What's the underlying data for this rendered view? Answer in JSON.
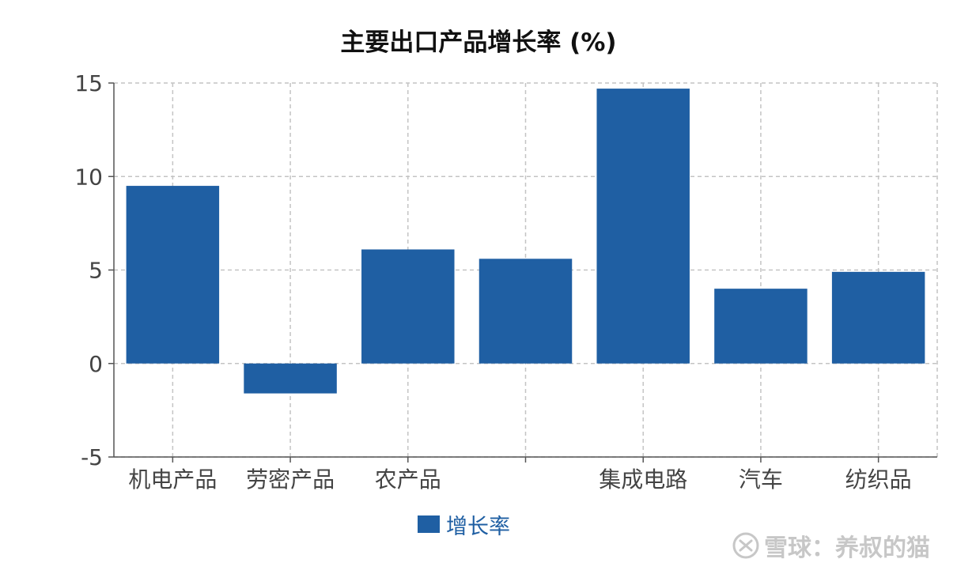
{
  "chart_data": {
    "type": "bar",
    "title": "主要出口产品增长率 (%)",
    "categories": [
      "机电产品",
      "劳密产品",
      "农产品",
      "",
      "集成电路",
      "汽车",
      "纺织品"
    ],
    "series": [
      {
        "name": "增长率",
        "values": [
          9.5,
          -1.6,
          6.1,
          5.6,
          14.7,
          4.0,
          4.9
        ]
      }
    ],
    "ylim": [
      -5,
      15
    ],
    "yticks": [
      -5,
      0,
      5,
      10,
      15
    ],
    "grid": true,
    "legend_position": "bottom-center",
    "colors": {
      "bar": "#1f5fa3",
      "legend_text": "#1f5fa3",
      "axis": "#555555",
      "grid": "#c4c4c4",
      "tick_text": "#444444"
    }
  },
  "watermark": {
    "text": "雪球：养叔的猫"
  }
}
